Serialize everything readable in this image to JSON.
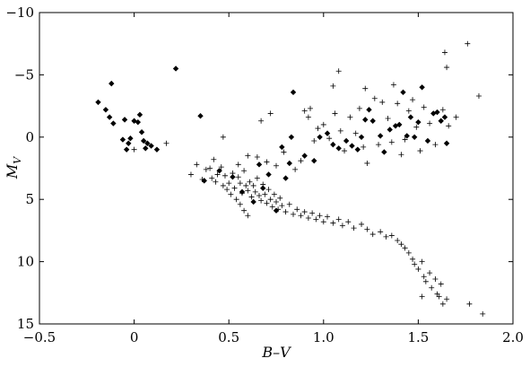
{
  "chart_data": {
    "type": "scatter",
    "title": "",
    "xlabel": "B–V",
    "ylabel": "M",
    "ylabel_sub": "V",
    "xlim": [
      -0.5,
      2.0
    ],
    "ylim": [
      15,
      -10
    ],
    "y_inverted": true,
    "grid": false,
    "xticks": [
      -0.5,
      0.0,
      0.5,
      1.0,
      1.5,
      2.0
    ],
    "xtick_labels": [
      "−0.5",
      "0",
      "0.5",
      "1.0",
      "1.5",
      "2.0"
    ],
    "yticks": [
      -10,
      -5,
      0,
      5,
      10,
      15
    ],
    "ytick_labels": [
      "−10",
      "−5",
      "0",
      "5",
      "10",
      "15"
    ],
    "series": [
      {
        "marker": "diamond",
        "color": "#000000",
        "points": [
          [
            -0.19,
            -2.8
          ],
          [
            -0.15,
            -2.2
          ],
          [
            -0.13,
            -1.6
          ],
          [
            -0.12,
            -4.3
          ],
          [
            -0.11,
            -1.1
          ],
          [
            -0.06,
            0.2
          ],
          [
            -0.05,
            -1.4
          ],
          [
            -0.04,
            1.0
          ],
          [
            -0.03,
            0.5
          ],
          [
            -0.02,
            0.1
          ],
          [
            0.0,
            -1.3
          ],
          [
            0.02,
            -1.2
          ],
          [
            0.03,
            -1.8
          ],
          [
            0.04,
            -0.4
          ],
          [
            0.05,
            0.3
          ],
          [
            0.06,
            0.9
          ],
          [
            0.07,
            0.5
          ],
          [
            0.09,
            0.7
          ],
          [
            0.12,
            1.0
          ],
          [
            0.22,
            -5.5
          ],
          [
            0.35,
            -1.7
          ],
          [
            0.37,
            3.5
          ],
          [
            0.45,
            2.7
          ],
          [
            0.52,
            3.2
          ],
          [
            0.57,
            4.4
          ],
          [
            0.63,
            5.2
          ],
          [
            0.66,
            2.2
          ],
          [
            0.68,
            4.1
          ],
          [
            0.71,
            3.0
          ],
          [
            0.75,
            5.9
          ],
          [
            0.78,
            0.8
          ],
          [
            0.8,
            3.3
          ],
          [
            0.82,
            2.1
          ],
          [
            0.83,
            0.0
          ],
          [
            0.84,
            -3.6
          ],
          [
            0.9,
            1.5
          ],
          [
            0.95,
            1.9
          ],
          [
            0.98,
            0.0
          ],
          [
            1.02,
            -0.3
          ],
          [
            1.05,
            0.6
          ],
          [
            1.08,
            0.9
          ],
          [
            1.12,
            0.3
          ],
          [
            1.15,
            0.7
          ],
          [
            1.18,
            1.0
          ],
          [
            1.2,
            0.0
          ],
          [
            1.22,
            -1.4
          ],
          [
            1.24,
            -2.2
          ],
          [
            1.26,
            -1.3
          ],
          [
            1.3,
            -0.1
          ],
          [
            1.32,
            1.2
          ],
          [
            1.35,
            -0.6
          ],
          [
            1.38,
            -0.9
          ],
          [
            1.4,
            -1.0
          ],
          [
            1.42,
            -3.6
          ],
          [
            1.44,
            -0.1
          ],
          [
            1.46,
            -1.6
          ],
          [
            1.48,
            0.0
          ],
          [
            1.5,
            -1.2
          ],
          [
            1.52,
            -4.0
          ],
          [
            1.55,
            0.3
          ],
          [
            1.58,
            -1.9
          ],
          [
            1.6,
            -2.0
          ],
          [
            1.62,
            -1.3
          ],
          [
            1.64,
            -1.6
          ],
          [
            1.65,
            0.5
          ]
        ]
      },
      {
        "marker": "plus",
        "color": "#000000",
        "points": [
          [
            0.0,
            1.0
          ],
          [
            0.17,
            0.5
          ],
          [
            0.36,
            3.4
          ],
          [
            0.4,
            2.5
          ],
          [
            0.42,
            1.8
          ],
          [
            0.44,
            3.0
          ],
          [
            0.46,
            2.4
          ],
          [
            0.48,
            3.1
          ],
          [
            0.5,
            3.7
          ],
          [
            0.52,
            2.9
          ],
          [
            0.53,
            4.1
          ],
          [
            0.55,
            3.2
          ],
          [
            0.56,
            3.7
          ],
          [
            0.57,
            4.5
          ],
          [
            0.58,
            2.7
          ],
          [
            0.59,
            3.9
          ],
          [
            0.6,
            4.3
          ],
          [
            0.61,
            3.6
          ],
          [
            0.62,
            4.8
          ],
          [
            0.63,
            3.9
          ],
          [
            0.64,
            4.4
          ],
          [
            0.65,
            3.3
          ],
          [
            0.66,
            4.7
          ],
          [
            0.67,
            5.1
          ],
          [
            0.68,
            3.8
          ],
          [
            0.69,
            4.6
          ],
          [
            0.7,
            5.3
          ],
          [
            0.71,
            4.2
          ],
          [
            0.72,
            5.0
          ],
          [
            0.73,
            5.6
          ],
          [
            0.74,
            4.6
          ],
          [
            0.75,
            5.2
          ],
          [
            0.76,
            5.8
          ],
          [
            0.77,
            4.9
          ],
          [
            0.78,
            5.5
          ],
          [
            0.8,
            6.0
          ],
          [
            0.82,
            5.4
          ],
          [
            0.84,
            6.2
          ],
          [
            0.86,
            5.8
          ],
          [
            0.88,
            6.3
          ],
          [
            0.9,
            6.0
          ],
          [
            0.92,
            6.5
          ],
          [
            0.94,
            6.1
          ],
          [
            0.96,
            6.6
          ],
          [
            0.98,
            6.3
          ],
          [
            1.0,
            6.8
          ],
          [
            1.02,
            6.4
          ],
          [
            1.05,
            6.9
          ],
          [
            1.08,
            6.6
          ],
          [
            1.1,
            7.1
          ],
          [
            1.13,
            6.8
          ],
          [
            1.16,
            7.3
          ],
          [
            1.2,
            7.0
          ],
          [
            1.23,
            7.4
          ],
          [
            1.26,
            7.8
          ],
          [
            1.3,
            7.6
          ],
          [
            1.33,
            8.0
          ],
          [
            1.36,
            7.9
          ],
          [
            1.39,
            8.3
          ],
          [
            1.41,
            8.6
          ],
          [
            1.43,
            8.9
          ],
          [
            1.45,
            9.3
          ],
          [
            1.47,
            9.8
          ],
          [
            1.48,
            10.2
          ],
          [
            1.5,
            10.6
          ],
          [
            1.52,
            10.0
          ],
          [
            1.53,
            11.2
          ],
          [
            1.54,
            11.6
          ],
          [
            1.56,
            10.9
          ],
          [
            1.57,
            12.1
          ],
          [
            1.59,
            11.4
          ],
          [
            1.6,
            12.6
          ],
          [
            1.62,
            11.8
          ],
          [
            1.63,
            13.4
          ],
          [
            1.65,
            13.0
          ],
          [
            1.61,
            12.8
          ],
          [
            1.52,
            12.8
          ],
          [
            1.77,
            13.4
          ],
          [
            1.84,
            14.2
          ],
          [
            0.3,
            3.0
          ],
          [
            0.33,
            2.2
          ],
          [
            0.38,
            2.6
          ],
          [
            0.41,
            3.3
          ],
          [
            0.43,
            3.6
          ],
          [
            0.47,
            3.9
          ],
          [
            0.49,
            4.2
          ],
          [
            0.51,
            4.6
          ],
          [
            0.54,
            5.0
          ],
          [
            0.56,
            5.4
          ],
          [
            0.58,
            5.9
          ],
          [
            0.6,
            6.3
          ],
          [
            0.55,
            2.2
          ],
          [
            0.6,
            1.5
          ],
          [
            0.65,
            1.6
          ],
          [
            0.7,
            2.0
          ],
          [
            0.75,
            2.3
          ],
          [
            0.79,
            1.2
          ],
          [
            0.85,
            2.6
          ],
          [
            0.88,
            1.9
          ],
          [
            0.92,
            -1.6
          ],
          [
            0.95,
            0.3
          ],
          [
            0.97,
            -0.7
          ],
          [
            1.0,
            -1.0
          ],
          [
            1.03,
            0.1
          ],
          [
            1.06,
            -1.9
          ],
          [
            1.09,
            -0.5
          ],
          [
            1.11,
            1.1
          ],
          [
            1.14,
            -1.6
          ],
          [
            1.17,
            -0.3
          ],
          [
            1.19,
            -2.3
          ],
          [
            1.21,
            0.8
          ],
          [
            1.23,
            2.1
          ],
          [
            1.27,
            -3.1
          ],
          [
            1.29,
            0.6
          ],
          [
            1.31,
            -2.8
          ],
          [
            1.34,
            -1.5
          ],
          [
            1.36,
            0.4
          ],
          [
            1.37,
            -4.2
          ],
          [
            1.39,
            -2.7
          ],
          [
            1.41,
            1.4
          ],
          [
            1.43,
            0.2
          ],
          [
            1.45,
            -2.1
          ],
          [
            1.47,
            -3.0
          ],
          [
            1.49,
            -0.8
          ],
          [
            1.51,
            1.1
          ],
          [
            1.53,
            -2.4
          ],
          [
            1.56,
            -1.1
          ],
          [
            1.59,
            0.6
          ],
          [
            1.63,
            -2.2
          ],
          [
            1.66,
            -0.9
          ],
          [
            1.7,
            -1.6
          ],
          [
            1.76,
            -7.5
          ],
          [
            1.65,
            -5.6
          ],
          [
            1.64,
            -6.8
          ],
          [
            1.82,
            -3.3
          ],
          [
            1.08,
            -5.3
          ],
          [
            1.22,
            -3.9
          ],
          [
            0.67,
            -1.3
          ],
          [
            0.9,
            -2.1
          ],
          [
            0.47,
            0.0
          ],
          [
            0.72,
            -1.9
          ],
          [
            0.93,
            -2.3
          ],
          [
            1.05,
            -4.1
          ]
        ]
      }
    ]
  }
}
